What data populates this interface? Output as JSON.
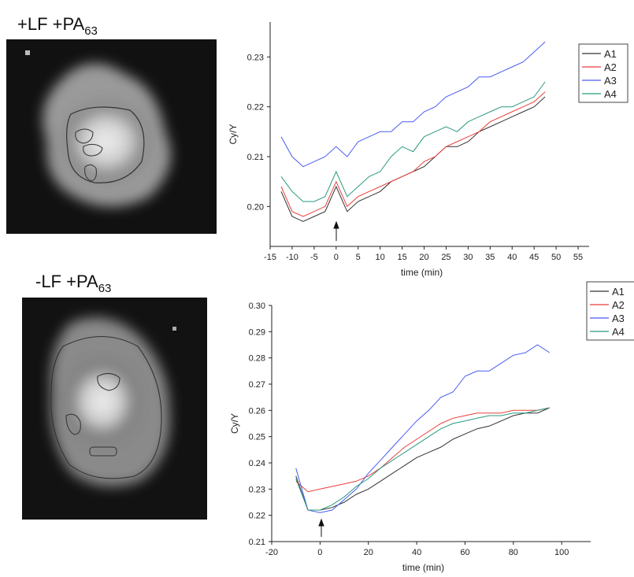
{
  "chart_data": [
    {
      "type": "line",
      "panel_label": "+LF +PA",
      "panel_label_sub": "63",
      "x_label": "time (min)",
      "y_label": "Cy/Y",
      "legend": "upper right",
      "x": [
        -12.5,
        -10,
        -7.5,
        -5,
        -2.5,
        0,
        2.5,
        5,
        7.5,
        10,
        12.5,
        15,
        17.5,
        20,
        22.5,
        25,
        27.5,
        30,
        32.5,
        35,
        37.5,
        40,
        42.5,
        45,
        47.5
      ],
      "series": [
        {
          "name": "A1",
          "color": "#333333",
          "values": [
            0.203,
            0.198,
            0.197,
            0.198,
            0.199,
            0.204,
            0.199,
            0.201,
            0.202,
            0.203,
            0.205,
            0.206,
            0.207,
            0.208,
            0.21,
            0.212,
            0.212,
            0.213,
            0.215,
            0.216,
            0.217,
            0.218,
            0.219,
            0.22,
            0.222
          ]
        },
        {
          "name": "A2",
          "color": "#e8403a",
          "values": [
            0.204,
            0.199,
            0.198,
            0.199,
            0.2,
            0.205,
            0.2,
            0.202,
            0.203,
            0.204,
            0.205,
            0.206,
            0.207,
            0.209,
            0.21,
            0.212,
            0.213,
            0.214,
            0.215,
            0.217,
            0.218,
            0.219,
            0.22,
            0.221,
            0.223
          ]
        },
        {
          "name": "A3",
          "color": "#4a5cf0",
          "values": [
            0.214,
            0.21,
            0.208,
            0.209,
            0.21,
            0.212,
            0.21,
            0.213,
            0.214,
            0.215,
            0.215,
            0.217,
            0.217,
            0.219,
            0.22,
            0.222,
            0.223,
            0.224,
            0.226,
            0.226,
            0.227,
            0.228,
            0.229,
            0.231,
            0.233
          ]
        },
        {
          "name": "A4",
          "color": "#2a9a80",
          "values": [
            0.206,
            0.203,
            0.201,
            0.201,
            0.202,
            0.207,
            0.202,
            0.204,
            0.206,
            0.207,
            0.21,
            0.212,
            0.211,
            0.214,
            0.215,
            0.216,
            0.215,
            0.217,
            0.218,
            0.219,
            0.22,
            0.22,
            0.221,
            0.222,
            0.225
          ]
        }
      ],
      "xlim": [
        -15,
        57.5
      ],
      "xticks": [
        -15,
        -10,
        -5,
        0,
        5,
        10,
        15,
        20,
        25,
        30,
        35,
        40,
        45,
        50,
        55
      ],
      "ylim": [
        0.192,
        0.237
      ],
      "yticks": [
        {
          "value": 0.2,
          "label": "0.20"
        },
        0.21,
        0.22,
        0.23
      ]
    },
    {
      "type": "line",
      "panel_label": "-LF +PA",
      "panel_label_sub": "63",
      "x_label": "time (min)",
      "y_label": "Cy/Y",
      "legend": "upper right",
      "x": [
        -10,
        -5,
        0,
        5,
        10,
        15,
        20,
        25,
        30,
        35,
        40,
        45,
        50,
        55,
        60,
        65,
        70,
        75,
        80,
        85,
        90,
        95
      ],
      "series": [
        {
          "name": "A1",
          "color": "#333333",
          "values": [
            0.235,
            0.222,
            0.222,
            0.223,
            0.225,
            0.228,
            0.23,
            0.233,
            0.236,
            0.239,
            0.242,
            0.244,
            0.246,
            0.249,
            0.251,
            0.253,
            0.254,
            0.256,
            0.258,
            0.259,
            0.259,
            0.261
          ]
        },
        {
          "name": "A2",
          "color": "#e8403a",
          "values": [
            0.233,
            0.229,
            0.23,
            0.231,
            0.232,
            0.233,
            0.235,
            0.238,
            0.242,
            0.246,
            0.249,
            0.252,
            0.255,
            0.257,
            0.258,
            0.259,
            0.259,
            0.259,
            0.26,
            0.26,
            0.26,
            0.261
          ]
        },
        {
          "name": "A3",
          "color": "#4a5cf0",
          "values": [
            0.238,
            0.222,
            0.221,
            0.222,
            0.226,
            0.23,
            0.236,
            0.241,
            0.246,
            0.251,
            0.256,
            0.26,
            0.265,
            0.267,
            0.273,
            0.275,
            0.275,
            0.278,
            0.281,
            0.282,
            0.285,
            0.282
          ]
        },
        {
          "name": "A4",
          "color": "#2a9a80",
          "values": [
            0.234,
            0.222,
            0.222,
            0.224,
            0.227,
            0.231,
            0.234,
            0.238,
            0.241,
            0.244,
            0.247,
            0.25,
            0.253,
            0.255,
            0.256,
            0.257,
            0.258,
            0.258,
            0.259,
            0.259,
            0.26,
            0.261
          ]
        }
      ],
      "xlim": [
        -20,
        112
      ],
      "xticks": [
        -20,
        0,
        20,
        40,
        60,
        80,
        100
      ],
      "ylim": [
        0.21,
        0.3
      ],
      "yticks": [
        0.21,
        0.22,
        0.23,
        0.24,
        0.25,
        0.26,
        0.27,
        0.28,
        0.29,
        {
          "value": 0.3,
          "label": "0.30"
        }
      ]
    }
  ]
}
